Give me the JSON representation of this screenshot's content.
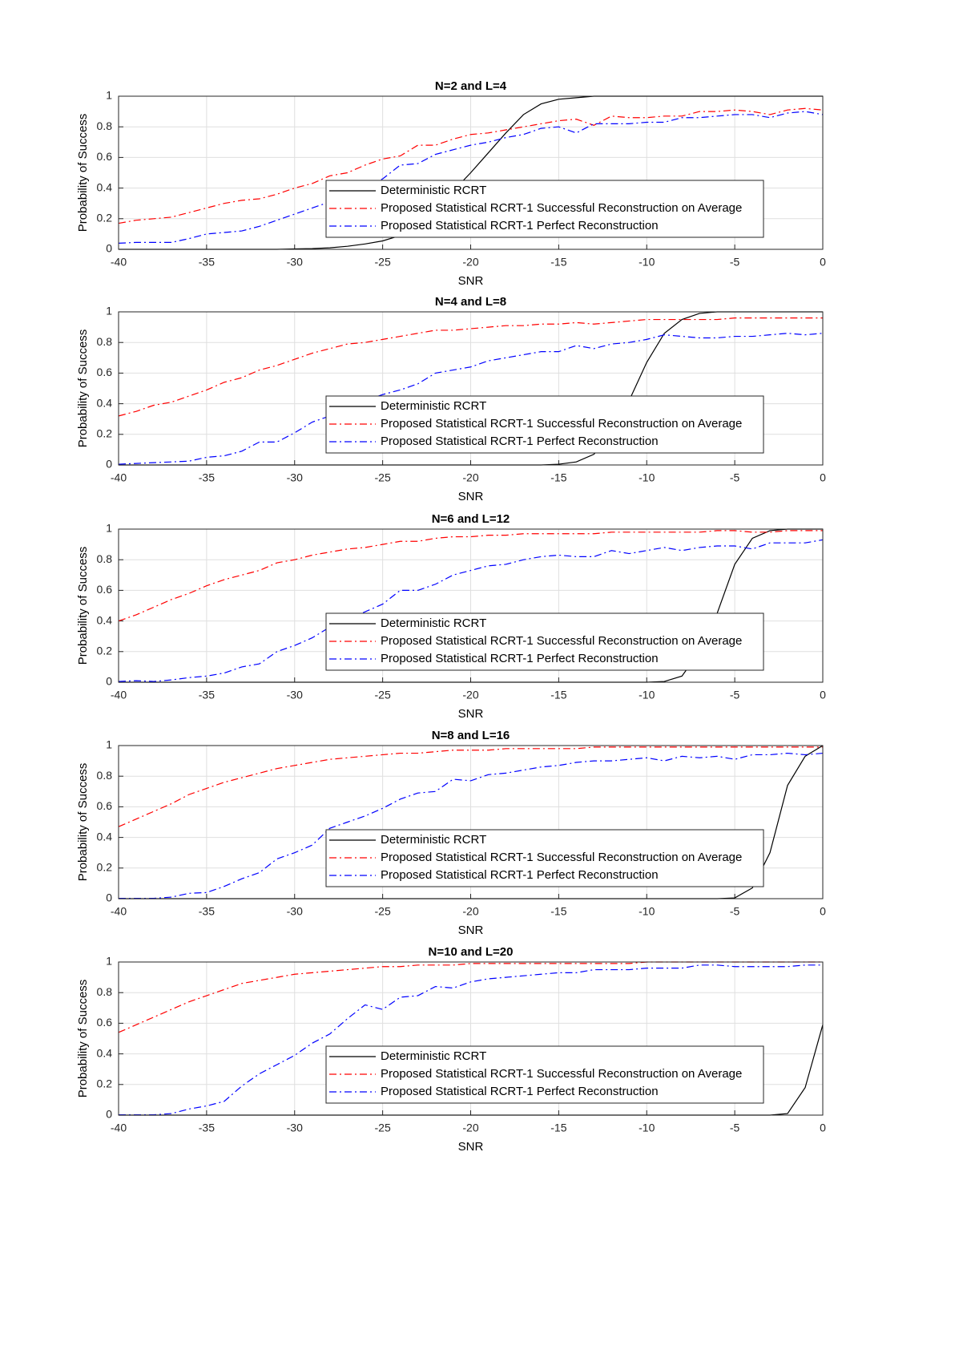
{
  "chart_data": [
    {
      "type": "line",
      "title": "N=2 and L=4",
      "xlabel": "SNR",
      "ylabel": "Probability of Success",
      "x": [
        -40,
        -39,
        -38,
        -37,
        -36,
        -35,
        -34,
        -33,
        -32,
        -31,
        -30,
        -29,
        -28,
        -27,
        -26,
        -25,
        -24,
        -23,
        -22,
        -21,
        -20,
        -19,
        -18,
        -17,
        -16,
        -15,
        -14,
        -13,
        -12,
        -11,
        -10,
        -9,
        -8,
        -7,
        -6,
        -5,
        -4,
        -3,
        -2,
        -1,
        0
      ],
      "xlim": [
        -40,
        0
      ],
      "xticks": [
        -40,
        -35,
        -30,
        -25,
        -20,
        -15,
        -10,
        -5,
        0
      ],
      "ylim": [
        0,
        1
      ],
      "yticks": [
        0,
        0.2,
        0.4,
        0.6,
        0.8,
        1
      ],
      "grid": true,
      "legend": "lower right",
      "series": [
        {
          "name": "Deterministic RCRT",
          "color": "#000000",
          "line_style": "solid",
          "values": [
            0,
            0,
            0,
            0,
            0,
            0,
            0,
            0,
            0,
            0,
            0.003,
            0.005,
            0.01,
            0.02,
            0.035,
            0.055,
            0.09,
            0.16,
            0.27,
            0.38,
            0.5,
            0.63,
            0.76,
            0.88,
            0.95,
            0.98,
            0.99,
            1,
            1,
            1,
            1,
            1,
            1,
            1,
            1,
            1,
            1,
            1,
            1,
            1,
            1
          ]
        },
        {
          "name": "Proposed Statistical RCRT-1 Successful Reconstruction on Average",
          "color": "#ff0000",
          "line_style": "dashdot",
          "values": [
            0.17,
            0.19,
            0.2,
            0.21,
            0.24,
            0.27,
            0.3,
            0.32,
            0.33,
            0.36,
            0.4,
            0.43,
            0.48,
            0.5,
            0.55,
            0.59,
            0.61,
            0.68,
            0.68,
            0.72,
            0.75,
            0.76,
            0.78,
            0.8,
            0.82,
            0.84,
            0.85,
            0.81,
            0.87,
            0.86,
            0.86,
            0.87,
            0.87,
            0.9,
            0.9,
            0.91,
            0.9,
            0.88,
            0.91,
            0.92,
            0.91
          ]
        },
        {
          "name": "Proposed Statistical RCRT-1 Perfect Reconstruction",
          "color": "#0000ff",
          "line_style": "dashdot",
          "values": [
            0.04,
            0.045,
            0.045,
            0.045,
            0.07,
            0.1,
            0.11,
            0.12,
            0.15,
            0.19,
            0.23,
            0.27,
            0.31,
            0.33,
            0.41,
            0.46,
            0.55,
            0.56,
            0.62,
            0.65,
            0.68,
            0.7,
            0.73,
            0.75,
            0.79,
            0.8,
            0.76,
            0.82,
            0.82,
            0.82,
            0.83,
            0.83,
            0.86,
            0.86,
            0.87,
            0.88,
            0.88,
            0.86,
            0.89,
            0.9,
            0.88
          ]
        }
      ]
    },
    {
      "type": "line",
      "title": "N=4 and L=8",
      "xlabel": "SNR",
      "ylabel": "Probability of Success",
      "x": [
        -40,
        -39,
        -38,
        -37,
        -36,
        -35,
        -34,
        -33,
        -32,
        -31,
        -30,
        -29,
        -28,
        -27,
        -26,
        -25,
        -24,
        -23,
        -22,
        -21,
        -20,
        -19,
        -18,
        -17,
        -16,
        -15,
        -14,
        -13,
        -12,
        -11,
        -10,
        -9,
        -8,
        -7,
        -6,
        -5,
        -4,
        -3,
        -2,
        -1,
        0
      ],
      "xlim": [
        -40,
        0
      ],
      "xticks": [
        -40,
        -35,
        -30,
        -25,
        -20,
        -15,
        -10,
        -5,
        0
      ],
      "ylim": [
        0,
        1
      ],
      "yticks": [
        0,
        0.2,
        0.4,
        0.6,
        0.8,
        1
      ],
      "grid": true,
      "legend": "lower right",
      "series": [
        {
          "name": "Deterministic RCRT",
          "color": "#000000",
          "line_style": "solid",
          "values": [
            0,
            0,
            0,
            0,
            0,
            0,
            0,
            0,
            0,
            0,
            0,
            0,
            0,
            0,
            0,
            0,
            0,
            0,
            0,
            0,
            0,
            0,
            0,
            0,
            0,
            0.005,
            0.02,
            0.07,
            0.2,
            0.42,
            0.67,
            0.86,
            0.95,
            0.99,
            1,
            1,
            1,
            1,
            1,
            1,
            1
          ]
        },
        {
          "name": "Proposed Statistical RCRT-1 Successful Reconstruction on Average",
          "color": "#ff0000",
          "line_style": "dashdot",
          "values": [
            0.32,
            0.35,
            0.39,
            0.41,
            0.45,
            0.49,
            0.54,
            0.57,
            0.62,
            0.65,
            0.69,
            0.73,
            0.76,
            0.79,
            0.8,
            0.82,
            0.84,
            0.86,
            0.88,
            0.88,
            0.89,
            0.9,
            0.91,
            0.91,
            0.92,
            0.92,
            0.93,
            0.92,
            0.93,
            0.94,
            0.95,
            0.95,
            0.95,
            0.95,
            0.95,
            0.96,
            0.96,
            0.96,
            0.96,
            0.96,
            0.96
          ]
        },
        {
          "name": "Proposed Statistical RCRT-1 Perfect Reconstruction",
          "color": "#0000ff",
          "line_style": "dashdot",
          "values": [
            0.005,
            0.01,
            0.015,
            0.02,
            0.025,
            0.05,
            0.06,
            0.09,
            0.15,
            0.15,
            0.21,
            0.28,
            0.32,
            0.35,
            0.42,
            0.46,
            0.49,
            0.53,
            0.6,
            0.62,
            0.64,
            0.68,
            0.7,
            0.72,
            0.74,
            0.74,
            0.78,
            0.76,
            0.79,
            0.8,
            0.82,
            0.85,
            0.84,
            0.83,
            0.83,
            0.84,
            0.84,
            0.85,
            0.86,
            0.85,
            0.86
          ]
        }
      ]
    },
    {
      "type": "line",
      "title": "N=6 and L=12",
      "xlabel": "SNR",
      "ylabel": "Probability of Success",
      "x": [
        -40,
        -39,
        -38,
        -37,
        -36,
        -35,
        -34,
        -33,
        -32,
        -31,
        -30,
        -29,
        -28,
        -27,
        -26,
        -25,
        -24,
        -23,
        -22,
        -21,
        -20,
        -19,
        -18,
        -17,
        -16,
        -15,
        -14,
        -13,
        -12,
        -11,
        -10,
        -9,
        -8,
        -7,
        -6,
        -5,
        -4,
        -3,
        -2,
        -1,
        0
      ],
      "xlim": [
        -40,
        0
      ],
      "xticks": [
        -40,
        -35,
        -30,
        -25,
        -20,
        -15,
        -10,
        -5,
        0
      ],
      "ylim": [
        0,
        1
      ],
      "yticks": [
        0,
        0.2,
        0.4,
        0.6,
        0.8,
        1
      ],
      "grid": true,
      "legend": "lower right",
      "series": [
        {
          "name": "Deterministic RCRT",
          "color": "#000000",
          "line_style": "solid",
          "values": [
            0,
            0,
            0,
            0,
            0,
            0,
            0,
            0,
            0,
            0,
            0,
            0,
            0,
            0,
            0,
            0,
            0,
            0,
            0,
            0,
            0,
            0,
            0,
            0,
            0,
            0,
            0,
            0,
            0,
            0,
            0,
            0.005,
            0.04,
            0.2,
            0.45,
            0.77,
            0.94,
            0.99,
            1,
            1,
            1
          ]
        },
        {
          "name": "Proposed Statistical RCRT-1 Successful Reconstruction on Average",
          "color": "#ff0000",
          "line_style": "dashdot",
          "values": [
            0.4,
            0.44,
            0.49,
            0.54,
            0.58,
            0.63,
            0.67,
            0.7,
            0.73,
            0.78,
            0.8,
            0.83,
            0.85,
            0.87,
            0.88,
            0.9,
            0.92,
            0.92,
            0.94,
            0.95,
            0.95,
            0.96,
            0.96,
            0.97,
            0.97,
            0.97,
            0.97,
            0.97,
            0.98,
            0.98,
            0.98,
            0.98,
            0.98,
            0.98,
            0.99,
            0.99,
            0.98,
            0.98,
            0.99,
            0.99,
            0.99
          ]
        },
        {
          "name": "Proposed Statistical RCRT-1 Perfect Reconstruction",
          "color": "#0000ff",
          "line_style": "dashdot",
          "values": [
            0.005,
            0.01,
            0.005,
            0.015,
            0.03,
            0.04,
            0.06,
            0.1,
            0.12,
            0.2,
            0.24,
            0.29,
            0.36,
            0.41,
            0.46,
            0.51,
            0.6,
            0.6,
            0.64,
            0.7,
            0.73,
            0.76,
            0.77,
            0.8,
            0.82,
            0.83,
            0.82,
            0.82,
            0.86,
            0.84,
            0.86,
            0.88,
            0.86,
            0.88,
            0.89,
            0.89,
            0.87,
            0.91,
            0.91,
            0.91,
            0.93
          ]
        }
      ]
    },
    {
      "type": "line",
      "title": "N=8 and L=16",
      "xlabel": "SNR",
      "ylabel": "Probability of Success",
      "x": [
        -40,
        -39,
        -38,
        -37,
        -36,
        -35,
        -34,
        -33,
        -32,
        -31,
        -30,
        -29,
        -28,
        -27,
        -26,
        -25,
        -24,
        -23,
        -22,
        -21,
        -20,
        -19,
        -18,
        -17,
        -16,
        -15,
        -14,
        -13,
        -12,
        -11,
        -10,
        -9,
        -8,
        -7,
        -6,
        -5,
        -4,
        -3,
        -2,
        -1,
        0
      ],
      "xlim": [
        -40,
        0
      ],
      "xticks": [
        -40,
        -35,
        -30,
        -25,
        -20,
        -15,
        -10,
        -5,
        0
      ],
      "ylim": [
        0,
        1
      ],
      "yticks": [
        0,
        0.2,
        0.4,
        0.6,
        0.8,
        1
      ],
      "grid": true,
      "legend": "lower right",
      "series": [
        {
          "name": "Deterministic RCRT",
          "color": "#000000",
          "line_style": "solid",
          "values": [
            0,
            0,
            0,
            0,
            0,
            0,
            0,
            0,
            0,
            0,
            0,
            0,
            0,
            0,
            0,
            0,
            0,
            0,
            0,
            0,
            0,
            0,
            0,
            0,
            0,
            0,
            0,
            0,
            0,
            0,
            0,
            0,
            0,
            0,
            0,
            0.005,
            0.07,
            0.3,
            0.74,
            0.93,
            1
          ]
        },
        {
          "name": "Proposed Statistical RCRT-1 Successful Reconstruction on Average",
          "color": "#ff0000",
          "line_style": "dashdot",
          "values": [
            0.47,
            0.52,
            0.57,
            0.62,
            0.68,
            0.72,
            0.76,
            0.79,
            0.82,
            0.85,
            0.87,
            0.89,
            0.91,
            0.92,
            0.93,
            0.94,
            0.95,
            0.95,
            0.96,
            0.97,
            0.97,
            0.97,
            0.98,
            0.98,
            0.98,
            0.98,
            0.98,
            0.99,
            0.99,
            0.99,
            0.99,
            0.99,
            0.99,
            0.99,
            0.99,
            0.99,
            0.99,
            0.99,
            0.99,
            0.99,
            0.99
          ]
        },
        {
          "name": "Proposed Statistical RCRT-1 Perfect Reconstruction",
          "color": "#0000ff",
          "line_style": "dashdot",
          "values": [
            0.002,
            0.002,
            0.002,
            0.01,
            0.035,
            0.04,
            0.08,
            0.13,
            0.17,
            0.26,
            0.3,
            0.35,
            0.46,
            0.5,
            0.54,
            0.59,
            0.65,
            0.69,
            0.7,
            0.78,
            0.77,
            0.81,
            0.82,
            0.84,
            0.86,
            0.87,
            0.89,
            0.9,
            0.9,
            0.91,
            0.92,
            0.9,
            0.93,
            0.92,
            0.93,
            0.91,
            0.94,
            0.94,
            0.95,
            0.94,
            0.95
          ]
        }
      ]
    },
    {
      "type": "line",
      "title": "N=10 and L=20",
      "xlabel": "SNR",
      "ylabel": "Probability of Success",
      "x": [
        -40,
        -39,
        -38,
        -37,
        -36,
        -35,
        -34,
        -33,
        -32,
        -31,
        -30,
        -29,
        -28,
        -27,
        -26,
        -25,
        -24,
        -23,
        -22,
        -21,
        -20,
        -19,
        -18,
        -17,
        -16,
        -15,
        -14,
        -13,
        -12,
        -11,
        -10,
        -9,
        -8,
        -7,
        -6,
        -5,
        -4,
        -3,
        -2,
        -1,
        0
      ],
      "xlim": [
        -40,
        0
      ],
      "xticks": [
        -40,
        -35,
        -30,
        -25,
        -20,
        -15,
        -10,
        -5,
        0
      ],
      "ylim": [
        0,
        1
      ],
      "yticks": [
        0,
        0.2,
        0.4,
        0.6,
        0.8,
        1
      ],
      "grid": true,
      "legend": "lower right",
      "series": [
        {
          "name": "Deterministic RCRT",
          "color": "#000000",
          "line_style": "solid",
          "values": [
            0,
            0,
            0,
            0,
            0,
            0,
            0,
            0,
            0,
            0,
            0,
            0,
            0,
            0,
            0,
            0,
            0,
            0,
            0,
            0,
            0,
            0,
            0,
            0,
            0,
            0,
            0,
            0,
            0,
            0,
            0,
            0,
            0,
            0,
            0,
            0,
            0,
            0,
            0.01,
            0.18,
            0.59
          ]
        },
        {
          "name": "Proposed Statistical RCRT-1 Successful Reconstruction on Average",
          "color": "#ff0000",
          "line_style": "dashdot",
          "values": [
            0.54,
            0.59,
            0.64,
            0.69,
            0.74,
            0.78,
            0.82,
            0.86,
            0.88,
            0.9,
            0.92,
            0.93,
            0.94,
            0.95,
            0.96,
            0.97,
            0.97,
            0.98,
            0.98,
            0.98,
            0.99,
            0.99,
            0.99,
            0.99,
            0.99,
            0.99,
            0.99,
            0.99,
            0.99,
            0.99,
            1,
            1,
            1,
            1,
            1,
            1,
            1,
            1,
            1,
            1,
            1
          ]
        },
        {
          "name": "Proposed Statistical RCRT-1 Perfect Reconstruction",
          "color": "#0000ff",
          "line_style": "dashdot",
          "values": [
            0.002,
            0.002,
            0.002,
            0.01,
            0.04,
            0.06,
            0.09,
            0.19,
            0.27,
            0.33,
            0.39,
            0.47,
            0.53,
            0.63,
            0.72,
            0.69,
            0.77,
            0.78,
            0.84,
            0.83,
            0.87,
            0.89,
            0.9,
            0.91,
            0.92,
            0.93,
            0.93,
            0.95,
            0.95,
            0.95,
            0.96,
            0.96,
            0.96,
            0.98,
            0.98,
            0.97,
            0.97,
            0.97,
            0.97,
            0.98,
            0.98
          ]
        }
      ]
    }
  ]
}
